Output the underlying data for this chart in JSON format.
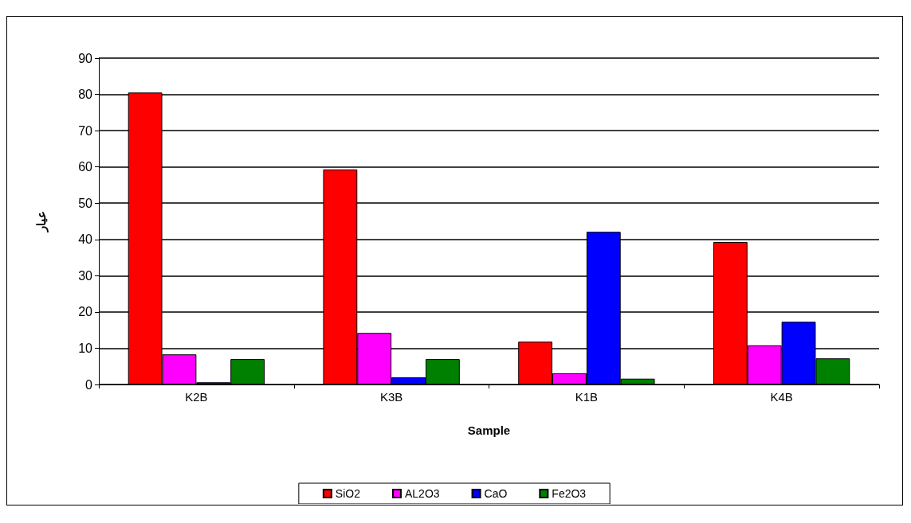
{
  "chart_data": {
    "type": "bar",
    "xlabel": "Sample",
    "ylabel": "عيار",
    "categories": [
      "K2B",
      "K3B",
      "K1B",
      "K4B"
    ],
    "series": [
      {
        "name": "SiO2",
        "color": "#ff0000",
        "values": [
          80.5,
          59.3,
          11.8,
          39.3
        ]
      },
      {
        "name": "AL2O3",
        "color": "#ff00ff",
        "values": [
          8.3,
          14.2,
          3.1,
          10.8
        ]
      },
      {
        "name": "CaO",
        "color": "#0000ff",
        "values": [
          0.6,
          2.0,
          42.1,
          17.3
        ]
      },
      {
        "name": "Fe2O3",
        "color": "#008000",
        "values": [
          7.0,
          7.0,
          1.6,
          7.2
        ]
      }
    ],
    "ylim": [
      0,
      90
    ],
    "yticks": [
      0,
      10,
      20,
      30,
      40,
      50,
      60,
      70,
      80,
      90
    ],
    "grid": "y",
    "legend": "bottom"
  }
}
